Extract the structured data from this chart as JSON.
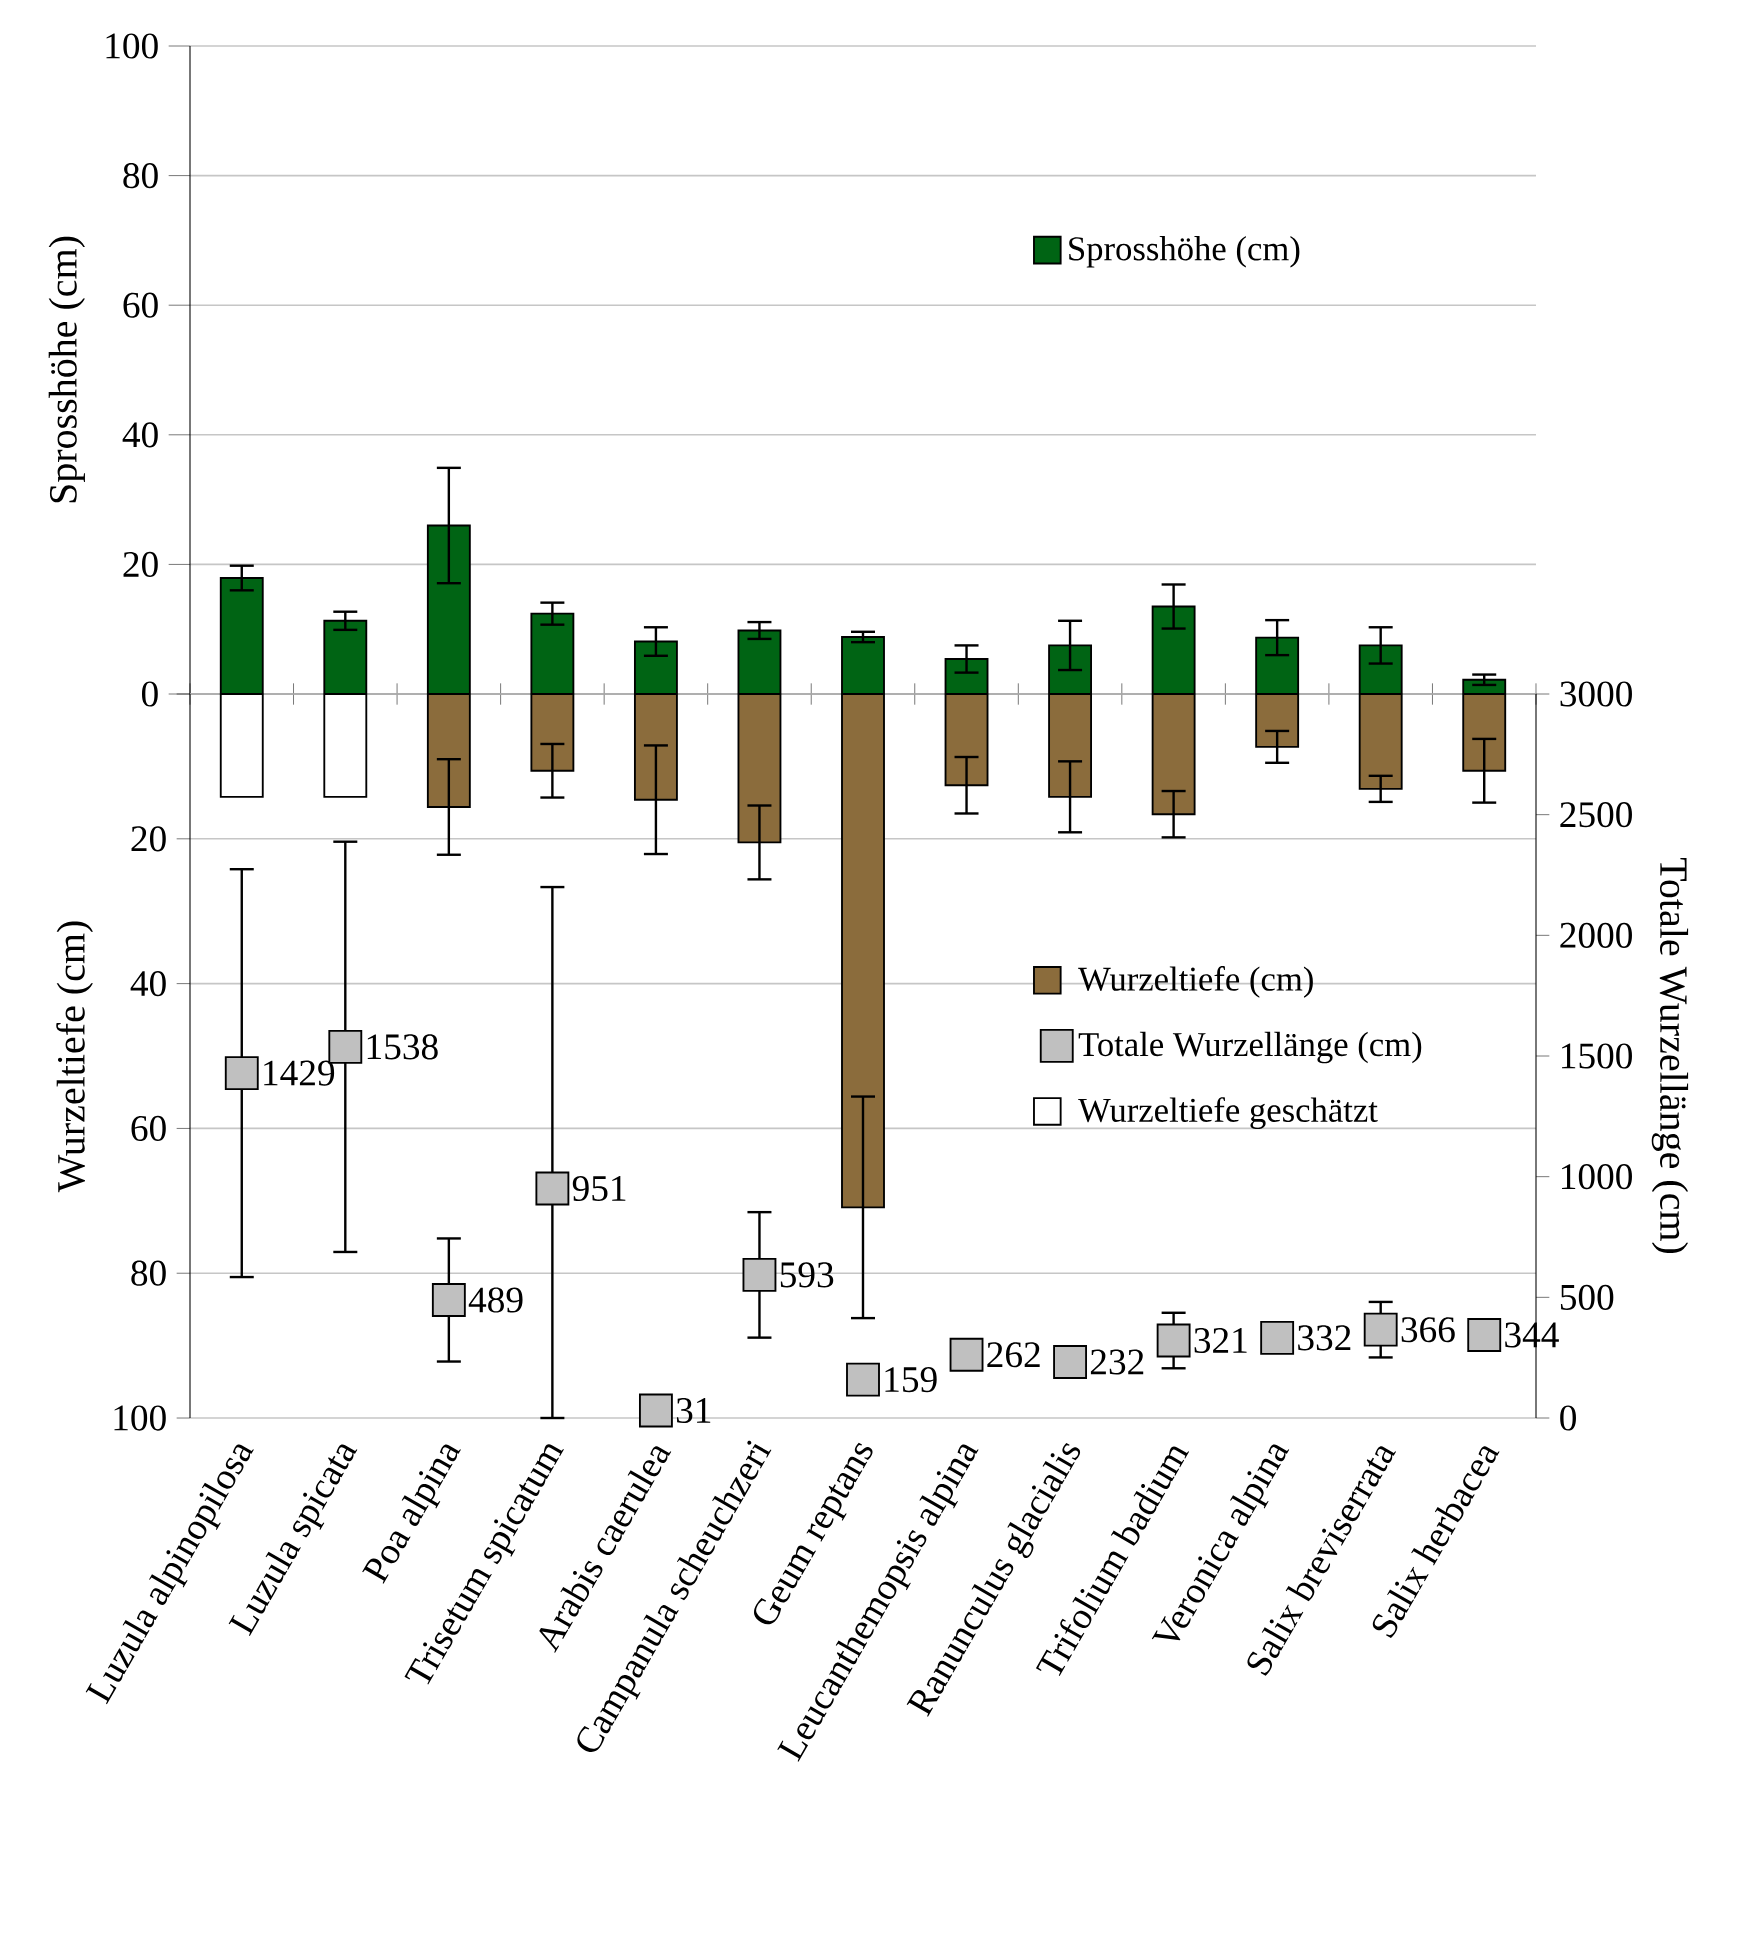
{
  "chart_data": [
    {
      "type": "bar",
      "categories": [
        null,
        null,
        null,
        null,
        null,
        null,
        null,
        null,
        null,
        null,
        null,
        null,
        null
      ],
      "ylabel": "Sprosshöhe (cm)",
      "ylim": [
        0,
        100
      ],
      "yticks": [
        0,
        20,
        40,
        60,
        80,
        100
      ],
      "grid": "y",
      "legend": "top right",
      "tick_labels": "y",
      "series": [
        {
          "name": "Sprosshöhe (cm)",
          "color": "#006414",
          "values": [
            17.9,
            11.3,
            26,
            12.4,
            8.1,
            9.8,
            8.8,
            5.4,
            7.5,
            13.5,
            8.7,
            7.5,
            2.2
          ],
          "errors": [
            1.9,
            1.4,
            8.9,
            1.7,
            2.2,
            1.3,
            0.8,
            2.1,
            3.8,
            3.4,
            2.7,
            2.8,
            0.8
          ]
        }
      ]
    },
    {
      "type": "bar",
      "categories": [
        "Luzula alpinopilosa",
        "Luzula spicata",
        "Poa alpina",
        "Trisetum spicatum",
        "Arabis caerulea",
        "Campanula scheuchzeri",
        "Geum reptans",
        "Leucanthemopsis alpina",
        "Ranunculus glacialis",
        "Trifolium badium",
        "Veronica alpina",
        "Salix breviserrata",
        "Salix herbacea"
      ],
      "ylabel": "Wurzeltiefe (cm)",
      "y2label": "Totale Wurzellänge (cm)",
      "ylim": [
        100,
        0
      ],
      "yticks": [
        {
          "value": 0,
          "label": null
        },
        20,
        40,
        60,
        80,
        100
      ],
      "y2lim": [
        0,
        3000
      ],
      "y2ticks": [
        0,
        500,
        1000,
        1500,
        2000,
        2500,
        3000
      ],
      "grid": "y",
      "legend": "right",
      "series": [
        {
          "name": "Wurzeltiefe (cm)",
          "color": "#8b6c3c",
          "values": [
            null,
            null,
            15.6,
            10.6,
            14.6,
            20.5,
            70.9,
            12.6,
            14.2,
            16.6,
            7.3,
            13.1,
            10.6
          ],
          "errors": [
            null,
            null,
            6.6,
            3.7,
            7.5,
            5.1,
            15.3,
            3.9,
            4.9,
            3.2,
            2.2,
            1.8,
            4.4
          ]
        },
        {
          "name": "Totale Wurzellänge (cm)",
          "type": "scatter",
          "axis": "y2",
          "marker": "square",
          "color": "#c0c0c0",
          "values": [
            1429,
            1538,
            489,
            951,
            31,
            593,
            159,
            262,
            232,
            321,
            332,
            366,
            344
          ],
          "value_labels": [
            "1429",
            "1538",
            "489",
            "951",
            "31",
            "593",
            "159",
            "262",
            "232",
            "321",
            "332",
            "366",
            "344"
          ],
          "errors": [
            845,
            850,
            255,
            [
              0,
              2200
            ],
            null,
            260,
            null,
            null,
            null,
            115,
            null,
            115,
            null
          ]
        },
        {
          "name": "Wurzeltiefe geschätzt",
          "color": "#ffffff",
          "values": [
            14.2,
            14.2,
            null,
            null,
            null,
            null,
            null,
            null,
            null,
            null,
            null,
            null,
            null
          ]
        }
      ]
    }
  ]
}
